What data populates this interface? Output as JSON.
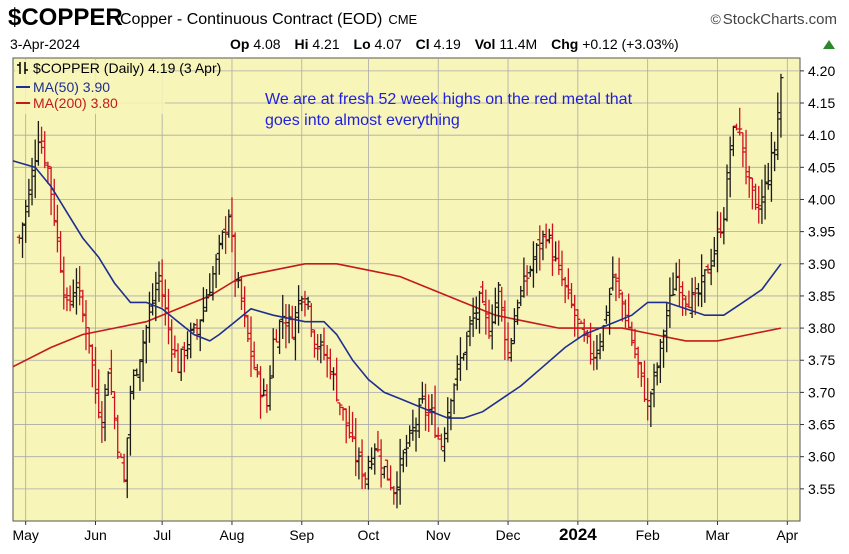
{
  "header": {
    "symbol": "$COPPER",
    "description": "Copper - Continuous Contract (EOD)",
    "exchange": "CME",
    "brand": "StockCharts.com",
    "brand_symbol": "©",
    "date": "3-Apr-2024",
    "open_label": "Op",
    "open": "4.08",
    "high_label": "Hi",
    "high": "4.21",
    "low_label": "Lo",
    "low": "4.07",
    "close_label": "Cl",
    "close": "4.19",
    "volume_label": "Vol",
    "volume": "11.4M",
    "change_label": "Chg",
    "change": "+0.12 (+3.03%)"
  },
  "legend": {
    "price": "$COPPER (Daily) 4.19 (3 Apr)",
    "ma50": "MA(50) 3.90",
    "ma200": "MA(200) 3.80"
  },
  "annotation": {
    "line1": "We are at fresh 52 week highs on the red metal that",
    "line2": "goes into almost everything"
  },
  "colors": {
    "plot_bg": "#f8f5b8",
    "up_bar": "#1a1a1a",
    "down_bar": "#cc1122",
    "ma50": "#1f2f8f",
    "ma200": "#c41a1a",
    "annotation": "#2020e0",
    "grid": "#aaaaaa"
  },
  "chart_data": {
    "type": "ohlc_bar",
    "series_name": "$COPPER (Daily)",
    "x_tick_labels": [
      "May",
      "Jun",
      "Jul",
      "Aug",
      "Sep",
      "Oct",
      "Nov",
      "Dec",
      "2024",
      "Feb",
      "Mar",
      "Apr"
    ],
    "x_tick_days": [
      2,
      24,
      45,
      67,
      89,
      110,
      132,
      154,
      176,
      198,
      220,
      242
    ],
    "y_ticks": [
      3.55,
      3.6,
      3.65,
      3.7,
      3.75,
      3.8,
      3.85,
      3.9,
      3.95,
      4.0,
      4.05,
      4.1,
      4.15,
      4.2
    ],
    "ylim": [
      3.5,
      4.22
    ],
    "xlim": [
      -2,
      246
    ],
    "grid": true,
    "close_path": [
      [
        0,
        3.94
      ],
      [
        3,
        4.01
      ],
      [
        6,
        4.1
      ],
      [
        9,
        4.05
      ],
      [
        13,
        3.9
      ],
      [
        15,
        3.83
      ],
      [
        18,
        3.87
      ],
      [
        20,
        3.82
      ],
      [
        22,
        3.78
      ],
      [
        24,
        3.7
      ],
      [
        26,
        3.66
      ],
      [
        28,
        3.74
      ],
      [
        31,
        3.62
      ],
      [
        33,
        3.56
      ],
      [
        35,
        3.7
      ],
      [
        38,
        3.76
      ],
      [
        41,
        3.82
      ],
      [
        44,
        3.88
      ],
      [
        47,
        3.8
      ],
      [
        50,
        3.74
      ],
      [
        53,
        3.78
      ],
      [
        56,
        3.8
      ],
      [
        59,
        3.85
      ],
      [
        62,
        3.9
      ],
      [
        64,
        3.94
      ],
      [
        66,
        3.98
      ],
      [
        68,
        3.88
      ],
      [
        70,
        3.84
      ],
      [
        72,
        3.78
      ],
      [
        75,
        3.72
      ],
      [
        78,
        3.68
      ],
      [
        80,
        3.78
      ],
      [
        83,
        3.82
      ],
      [
        86,
        3.8
      ],
      [
        89,
        3.86
      ],
      [
        91,
        3.84
      ],
      [
        93,
        3.78
      ],
      [
        96,
        3.76
      ],
      [
        98,
        3.74
      ],
      [
        100,
        3.7
      ],
      [
        103,
        3.65
      ],
      [
        106,
        3.6
      ],
      [
        109,
        3.57
      ],
      [
        112,
        3.62
      ],
      [
        115,
        3.58
      ],
      [
        118,
        3.55
      ],
      [
        121,
        3.6
      ],
      [
        124,
        3.64
      ],
      [
        127,
        3.68
      ],
      [
        130,
        3.66
      ],
      [
        133,
        3.62
      ],
      [
        136,
        3.7
      ],
      [
        139,
        3.75
      ],
      [
        142,
        3.8
      ],
      [
        145,
        3.84
      ],
      [
        148,
        3.8
      ],
      [
        151,
        3.86
      ],
      [
        154,
        3.76
      ],
      [
        157,
        3.84
      ],
      [
        160,
        3.88
      ],
      [
        163,
        3.92
      ],
      [
        166,
        3.95
      ],
      [
        169,
        3.9
      ],
      [
        172,
        3.86
      ],
      [
        175,
        3.82
      ],
      [
        178,
        3.78
      ],
      [
        181,
        3.76
      ],
      [
        184,
        3.8
      ],
      [
        187,
        3.88
      ],
      [
        190,
        3.84
      ],
      [
        193,
        3.78
      ],
      [
        196,
        3.72
      ],
      [
        198,
        3.68
      ],
      [
        201,
        3.74
      ],
      [
        204,
        3.82
      ],
      [
        207,
        3.88
      ],
      [
        210,
        3.85
      ],
      [
        213,
        3.84
      ],
      [
        216,
        3.88
      ],
      [
        219,
        3.92
      ],
      [
        222,
        3.98
      ],
      [
        224,
        4.08
      ],
      [
        226,
        4.12
      ],
      [
        228,
        4.08
      ],
      [
        230,
        4.02
      ],
      [
        232,
        3.98
      ],
      [
        234,
        4.0
      ],
      [
        236,
        4.04
      ],
      [
        238,
        4.08
      ],
      [
        240,
        4.19
      ]
    ],
    "ma50": [
      [
        -2,
        4.06
      ],
      [
        5,
        4.05
      ],
      [
        10,
        4.02
      ],
      [
        15,
        3.98
      ],
      [
        20,
        3.94
      ],
      [
        25,
        3.91
      ],
      [
        30,
        3.87
      ],
      [
        35,
        3.84
      ],
      [
        40,
        3.84
      ],
      [
        45,
        3.83
      ],
      [
        50,
        3.81
      ],
      [
        55,
        3.79
      ],
      [
        60,
        3.78
      ],
      [
        63,
        3.79
      ],
      [
        68,
        3.81
      ],
      [
        73,
        3.83
      ],
      [
        80,
        3.82
      ],
      [
        90,
        3.81
      ],
      [
        96,
        3.81
      ],
      [
        100,
        3.79
      ],
      [
        105,
        3.75
      ],
      [
        110,
        3.72
      ],
      [
        115,
        3.7
      ],
      [
        120,
        3.69
      ],
      [
        125,
        3.68
      ],
      [
        130,
        3.67
      ],
      [
        135,
        3.66
      ],
      [
        140,
        3.66
      ],
      [
        146,
        3.67
      ],
      [
        152,
        3.69
      ],
      [
        158,
        3.71
      ],
      [
        165,
        3.74
      ],
      [
        172,
        3.77
      ],
      [
        178,
        3.79
      ],
      [
        183,
        3.8
      ],
      [
        188,
        3.81
      ],
      [
        193,
        3.82
      ],
      [
        198,
        3.84
      ],
      [
        204,
        3.84
      ],
      [
        210,
        3.83
      ],
      [
        216,
        3.82
      ],
      [
        222,
        3.82
      ],
      [
        228,
        3.84
      ],
      [
        234,
        3.86
      ],
      [
        240,
        3.9
      ]
    ],
    "ma200": [
      [
        -2,
        3.74
      ],
      [
        10,
        3.77
      ],
      [
        20,
        3.79
      ],
      [
        30,
        3.8
      ],
      [
        40,
        3.81
      ],
      [
        50,
        3.83
      ],
      [
        60,
        3.85
      ],
      [
        70,
        3.88
      ],
      [
        80,
        3.89
      ],
      [
        90,
        3.9
      ],
      [
        100,
        3.9
      ],
      [
        110,
        3.89
      ],
      [
        120,
        3.88
      ],
      [
        130,
        3.86
      ],
      [
        140,
        3.84
      ],
      [
        150,
        3.82
      ],
      [
        160,
        3.81
      ],
      [
        170,
        3.8
      ],
      [
        180,
        3.8
      ],
      [
        190,
        3.8
      ],
      [
        200,
        3.79
      ],
      [
        210,
        3.78
      ],
      [
        220,
        3.78
      ],
      [
        230,
        3.79
      ],
      [
        240,
        3.8
      ]
    ]
  }
}
